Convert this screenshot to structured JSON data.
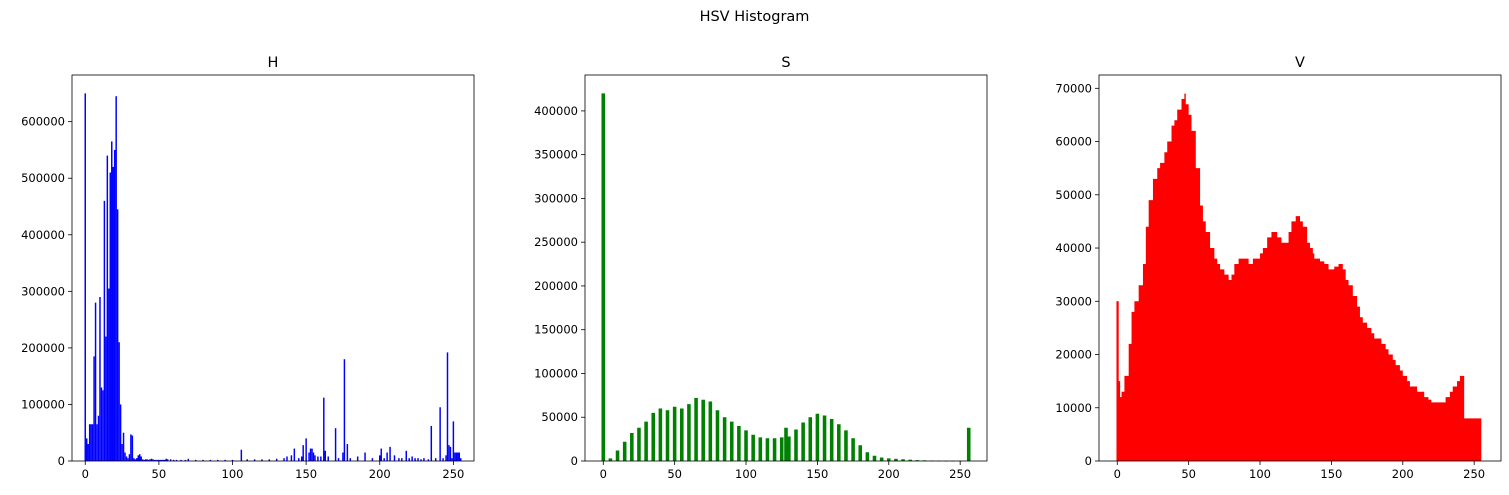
{
  "figure": {
    "suptitle": "HSV Histogram"
  },
  "chart_data": [
    {
      "type": "bar",
      "title": "H",
      "color": "#0000ff",
      "xlabel": "",
      "ylabel": "",
      "xlim": [
        -9,
        264
      ],
      "ylim": [
        0,
        682500
      ],
      "xticks": [
        0,
        50,
        100,
        150,
        200,
        250
      ],
      "yticks": [
        0,
        100000,
        200000,
        300000,
        400000,
        500000,
        600000
      ],
      "x": [
        0,
        1,
        2,
        3,
        4,
        5,
        6,
        7,
        8,
        9,
        10,
        11,
        12,
        13,
        14,
        15,
        16,
        17,
        18,
        19,
        20,
        21,
        22,
        23,
        24,
        25,
        26,
        27,
        28,
        29,
        30,
        31,
        32,
        33,
        34,
        35,
        36,
        37,
        38,
        39,
        40,
        41,
        42,
        43,
        44,
        45,
        46,
        47,
        48,
        49,
        50,
        51,
        52,
        53,
        54,
        55,
        56,
        58,
        60,
        62,
        65,
        68,
        70,
        75,
        80,
        85,
        90,
        95,
        100,
        106,
        110,
        115,
        120,
        125,
        130,
        135,
        137,
        140,
        142,
        145,
        147,
        148,
        150,
        152,
        153,
        154,
        155,
        156,
        158,
        160,
        162,
        163,
        165,
        170,
        172,
        175,
        176,
        178,
        180,
        185,
        190,
        195,
        200,
        201,
        203,
        205,
        207,
        210,
        213,
        215,
        218,
        220,
        222,
        224,
        226,
        228,
        230,
        233,
        235,
        238,
        241,
        243,
        245,
        246,
        247,
        248,
        249,
        250,
        251,
        252,
        253,
        254,
        255
      ],
      "values": [
        650000,
        40000,
        30000,
        65000,
        65000,
        65000,
        185000,
        280000,
        65000,
        80000,
        290000,
        130000,
        125000,
        460000,
        220000,
        540000,
        305000,
        510000,
        565000,
        520000,
        550000,
        645000,
        445000,
        210000,
        100000,
        30000,
        50000,
        15000,
        8000,
        5000,
        12000,
        47000,
        45000,
        5000,
        3000,
        5000,
        10000,
        12000,
        8000,
        3000,
        2000,
        3000,
        3000,
        2000,
        3000,
        4000,
        3000,
        2000,
        2000,
        2000,
        2000,
        2000,
        2000,
        2000,
        2000,
        4000,
        3000,
        3000,
        2000,
        2000,
        2000,
        2000,
        4000,
        2000,
        2000,
        2000,
        2000,
        2000,
        2000,
        20000,
        3000,
        3000,
        3000,
        3000,
        4000,
        5000,
        8000,
        10000,
        22000,
        5000,
        8000,
        28000,
        40000,
        15000,
        22000,
        22000,
        15000,
        10000,
        8000,
        8000,
        112000,
        18000,
        8000,
        58000,
        5000,
        15000,
        180000,
        30000,
        5000,
        8000,
        15000,
        5000,
        10000,
        22000,
        5000,
        15000,
        25000,
        10000,
        5000,
        5000,
        18000,
        5000,
        8000,
        5000,
        5000,
        3000,
        5000,
        3000,
        62000,
        5000,
        95000,
        5000,
        10000,
        192000,
        28000,
        25000,
        5000,
        70000,
        15000,
        15000,
        15000,
        15000,
        5000
      ],
      "bar_width": 1
    },
    {
      "type": "bar",
      "title": "S",
      "color": "#008000",
      "xlabel": "",
      "ylabel": "",
      "xlim": [
        -12.8,
        268.8
      ],
      "ylim": [
        0,
        441000
      ],
      "xticks": [
        0,
        50,
        100,
        150,
        200,
        250
      ],
      "yticks": [
        0,
        50000,
        100000,
        150000,
        200000,
        250000,
        300000,
        350000,
        400000
      ],
      "x": [
        0,
        5,
        10,
        15,
        20,
        25,
        30,
        35,
        40,
        45,
        50,
        55,
        60,
        65,
        70,
        75,
        80,
        85,
        90,
        95,
        100,
        105,
        110,
        115,
        120,
        125,
        128,
        130,
        135,
        140,
        145,
        150,
        155,
        160,
        165,
        170,
        175,
        180,
        185,
        190,
        195,
        200,
        205,
        210,
        215,
        220,
        225,
        230,
        235,
        240,
        245,
        250,
        256
      ],
      "values": [
        420000,
        3000,
        12000,
        22000,
        32000,
        38000,
        45000,
        55000,
        60000,
        58000,
        62000,
        60000,
        65000,
        72000,
        70000,
        68000,
        58000,
        50000,
        45000,
        40000,
        35000,
        30000,
        27000,
        26000,
        26000,
        27000,
        38000,
        28000,
        36000,
        44000,
        50000,
        54000,
        52000,
        48000,
        42000,
        35000,
        26000,
        18000,
        10000,
        6000,
        4000,
        3000,
        2500,
        2000,
        1500,
        1000,
        800,
        500,
        300,
        100,
        100,
        100,
        38000
      ],
      "bar_width": 2.5
    },
    {
      "type": "area",
      "title": "V",
      "color": "#ff0000",
      "xlabel": "",
      "ylabel": "",
      "xlim": [
        -12.8,
        268.8
      ],
      "ylim": [
        0,
        72500
      ],
      "xticks": [
        0,
        50,
        100,
        150,
        200,
        250
      ],
      "yticks": [
        0,
        10000,
        20000,
        30000,
        40000,
        50000,
        60000,
        70000
      ],
      "x": [
        0,
        1,
        2,
        3,
        5,
        8,
        10,
        12,
        15,
        18,
        20,
        22,
        25,
        28,
        30,
        33,
        35,
        38,
        40,
        42,
        45,
        47,
        48,
        50,
        52,
        55,
        58,
        60,
        62,
        65,
        68,
        70,
        72,
        75,
        78,
        80,
        82,
        85,
        88,
        90,
        92,
        95,
        98,
        100,
        102,
        105,
        108,
        110,
        112,
        115,
        118,
        120,
        122,
        125,
        128,
        130,
        133,
        135,
        137,
        138,
        140,
        142,
        145,
        148,
        150,
        152,
        155,
        158,
        160,
        162,
        165,
        168,
        170,
        172,
        175,
        178,
        180,
        182,
        185,
        188,
        190,
        193,
        195,
        198,
        200,
        203,
        205,
        208,
        210,
        213,
        215,
        218,
        220,
        222,
        225,
        228,
        230,
        233,
        235,
        238,
        240,
        243,
        245,
        248,
        250,
        252,
        253,
        254,
        255
      ],
      "values": [
        30000,
        15000,
        12000,
        13000,
        16000,
        22000,
        28000,
        30000,
        33000,
        37000,
        44000,
        49000,
        53000,
        55000,
        56000,
        58000,
        60000,
        63000,
        64000,
        66000,
        68000,
        69000,
        67000,
        65000,
        62000,
        55000,
        48000,
        45000,
        43000,
        40000,
        38000,
        37000,
        36000,
        35000,
        34000,
        35000,
        37000,
        38000,
        38000,
        38000,
        37000,
        38000,
        38000,
        39000,
        40000,
        42000,
        43000,
        43000,
        42000,
        41000,
        41000,
        43000,
        45000,
        46000,
        45000,
        44000,
        41000,
        40000,
        39000,
        38000,
        38000,
        37500,
        37000,
        36000,
        36000,
        36500,
        37000,
        36000,
        34000,
        33000,
        31000,
        29000,
        27000,
        26000,
        25000,
        24000,
        23000,
        23000,
        22000,
        21000,
        20000,
        19000,
        18000,
        17000,
        16000,
        15000,
        14000,
        14000,
        13000,
        13000,
        12000,
        11500,
        11000,
        11000,
        11000,
        11000,
        12000,
        13000,
        14000,
        15000,
        16000,
        8000,
        8000,
        8000,
        8000,
        8000,
        8000,
        8000,
        0
      ],
      "spike": {
        "x": 0,
        "value": 30000
      }
    }
  ]
}
